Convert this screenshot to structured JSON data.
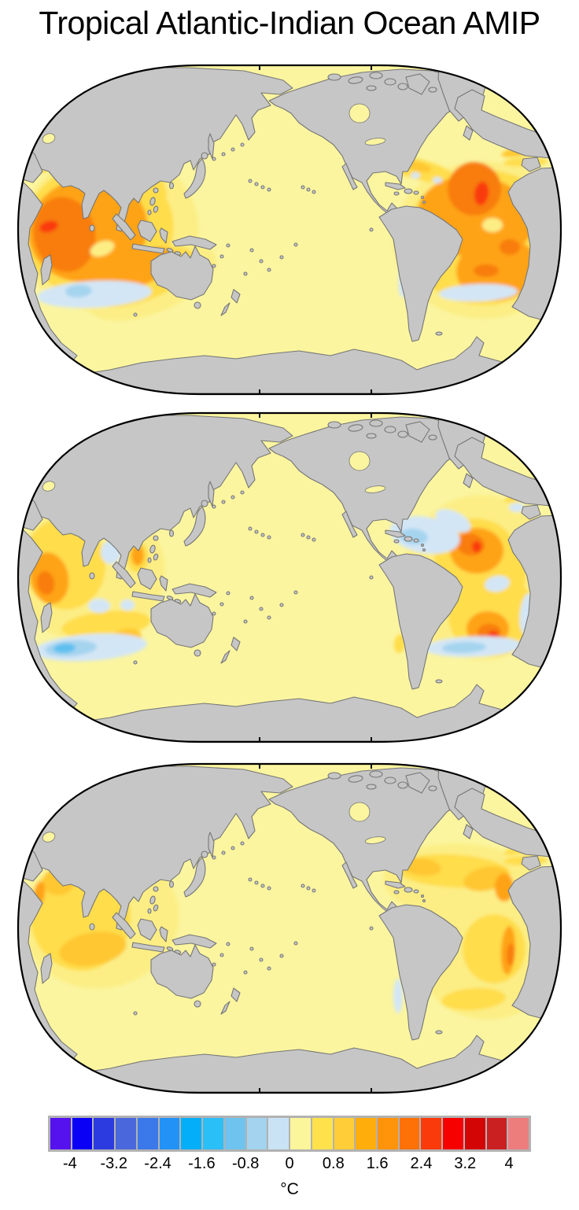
{
  "title": "Tropical Atlantic-Indian Ocean AMIP",
  "map_style": {
    "land_color": "#c6c6c6",
    "coast_color": "#767676",
    "ocean_base_color": "#FBF5A0",
    "frame_color": "#000000",
    "background": "#ffffff"
  },
  "palette": {
    "w1": "#FCEE85",
    "w2": "#FFDD4C",
    "w3": "#FFC731",
    "w4": "#FFA314",
    "w5": "#F87D0A",
    "w6": "#FA3A0A",
    "w7": "#F20500",
    "c1": "#D3E6F6",
    "c2": "#A5D4EF",
    "c3": "#5FC0F0"
  },
  "colorbar": {
    "unit": "°C",
    "tick_labels": [
      "-4",
      "-3.2",
      "-2.4",
      "-1.6",
      "-0.8",
      "0",
      "0.8",
      "1.6",
      "2.4",
      "3.2",
      "4"
    ],
    "segment_colors": [
      "#5512EE",
      "#0A00F5",
      "#2B3BE0",
      "#4A68DC",
      "#3B78EA",
      "#2292F6",
      "#05AEF8",
      "#2BBFF7",
      "#6EC4EE",
      "#A3D3EE",
      "#C9E3F5",
      "#FBF59B",
      "#FFE24B",
      "#FFCD37",
      "#FFAD0B",
      "#FF9309",
      "#FE7107",
      "#FA3A0A",
      "#F60100",
      "#D40505",
      "#CB2022",
      "#ED7D7D"
    ],
    "border_color": "#b2b2b2"
  },
  "chart_data": {
    "type": "heatmap",
    "title": "Tropical Atlantic-Indian Ocean AMIP",
    "subtitle": "",
    "description": "Three Pacific-centered global maps of sea-surface temperature anomaly (°C) for a Tropical Atlantic-Indian Ocean AMIP experiment; land gray, ocean shaded by anomaly.",
    "legend_position": "bottom",
    "units": "°C",
    "colorbar_range": [
      -4.4,
      4.4
    ],
    "colorbar_step": 0.4,
    "segment_edges": [
      -4.4,
      -4.0,
      -3.6,
      -3.2,
      -2.8,
      -2.4,
      -2.0,
      -1.6,
      -1.2,
      -0.8,
      -0.4,
      0,
      0.4,
      0.8,
      1.2,
      1.6,
      2.0,
      2.4,
      2.8,
      3.2,
      3.6,
      4.0,
      4.4
    ],
    "tick_values": [
      -4,
      -3.2,
      -2.4,
      -1.6,
      -0.8,
      0,
      0.8,
      1.6,
      2.4,
      3.2,
      4
    ],
    "background_ocean_value_c": 0.2,
    "panels": [
      {
        "name": "panel-1-top",
        "anomalies": [
          {
            "region": "western tropical Indian Ocean",
            "sign": "warm",
            "peak_c": 2.4
          },
          {
            "region": "tropical Atlantic (both hemispheres, strongest off NW Africa)",
            "sign": "warm",
            "peak_c": 3.0
          },
          {
            "region": "southern Indian Ocean ~40S",
            "sign": "cool",
            "peak_c": -1.0
          },
          {
            "region": "southwestern Atlantic ~40S and SE Brazil coast",
            "sign": "cool",
            "peak_c": -0.8
          },
          {
            "region": "Gulf of Guinea equatorial spot",
            "sign": "cool",
            "peak_c": -0.6
          }
        ],
        "blobs": [
          [
            "w1",
            118,
            215,
            115,
            102,
            -10
          ],
          [
            "w1",
            172,
            278,
            88,
            40,
            -22
          ],
          [
            "w2",
            105,
            212,
            96,
            86,
            -12
          ],
          [
            "w2",
            162,
            272,
            72,
            30,
            -22
          ],
          [
            "w2",
            150,
            168,
            42,
            36,
            0
          ],
          [
            "w4",
            92,
            212,
            76,
            66,
            -12
          ],
          [
            "w4",
            150,
            264,
            56,
            22,
            -22
          ],
          [
            "w5",
            62,
            218,
            39,
            48,
            -12
          ],
          [
            "w6",
            42,
            208,
            12,
            7,
            -15
          ],
          [
            "w4",
            150,
            182,
            9,
            14,
            0
          ],
          [
            "w1",
            110,
            236,
            16,
            9,
            -20
          ],
          [
            "c1",
            100,
            294,
            73,
            17,
            -3
          ],
          [
            "c2",
            80,
            290,
            17,
            8,
            -3
          ],
          [
            "w1",
            595,
            225,
            115,
            100,
            0
          ],
          [
            "w2",
            595,
            222,
            99,
            86,
            0
          ],
          [
            "w2",
            514,
            136,
            45,
            13,
            14
          ],
          [
            "w3",
            512,
            132,
            17,
            6,
            14
          ],
          [
            "w4",
            585,
            196,
            74,
            52,
            8
          ],
          [
            "w4",
            612,
            262,
            52,
            40,
            -8
          ],
          [
            "w5",
            583,
            160,
            34,
            34,
            10
          ],
          [
            "w5",
            628,
            234,
            13,
            10,
            0
          ],
          [
            "w5",
            598,
            264,
            16,
            8,
            0
          ],
          [
            "w6",
            592,
            166,
            9,
            15,
            8
          ],
          [
            "w1",
            606,
            206,
            13,
            9,
            0
          ],
          [
            "c1",
            588,
            292,
            50,
            11,
            -2
          ],
          [
            "c1",
            494,
            272,
            7,
            26,
            6
          ],
          [
            "c1",
            688,
            222,
            10,
            8,
            0
          ],
          [
            "c1",
            508,
            143,
            6,
            4,
            0
          ],
          [
            "c1",
            536,
            149,
            6,
            4,
            0
          ],
          [
            "w2",
            648,
            126,
            28,
            6,
            -2
          ],
          [
            "w3",
            641,
            112,
            24,
            6,
            -12
          ],
          [
            "w2",
            16,
            138,
            13,
            4,
            -50
          ],
          [
            "w2",
            38,
            136,
            7,
            3,
            -25
          ]
        ]
      },
      {
        "name": "panel-2-middle",
        "anomalies": [
          {
            "region": "Arabian Sea / western Indian Ocean",
            "sign": "warm",
            "peak_c": 2.2
          },
          {
            "region": "eastern tropical North Atlantic off West Africa",
            "sign": "warm",
            "peak_c": 2.8
          },
          {
            "region": "central South Atlantic",
            "sign": "warm",
            "peak_c": 2.8
          },
          {
            "region": "subtropical North Atlantic (west of 30N)",
            "sign": "cool",
            "peak_c": -1.2
          },
          {
            "region": "southern Indian Ocean ~40S",
            "sign": "cool",
            "peak_c": -1.4
          },
          {
            "region": "South Atlantic ~40S band and Benguela coast",
            "sign": "cool",
            "peak_c": -1.0
          },
          {
            "region": "Bay of Bengal",
            "sign": "cool",
            "peak_c": -0.6
          }
        ],
        "blobs": [
          [
            "w1",
            95,
            205,
            95,
            90,
            -10
          ],
          [
            "w2",
            62,
            195,
            52,
            58,
            -8
          ],
          [
            "w2",
            115,
            272,
            57,
            17,
            -6
          ],
          [
            "w3",
            142,
            288,
            18,
            11,
            -8
          ],
          [
            "w4",
            43,
            213,
            24,
            33,
            -10
          ],
          [
            "w5",
            38,
            219,
            11,
            15,
            -10
          ],
          [
            "w2",
            155,
            186,
            14,
            20,
            0
          ],
          [
            "w4",
            155,
            184,
            8,
            13,
            0
          ],
          [
            "c1",
            121,
            180,
            13,
            15,
            0
          ],
          [
            "c1",
            106,
            248,
            14,
            9,
            0
          ],
          [
            "c1",
            142,
            247,
            9,
            7,
            0
          ],
          [
            "c1",
            95,
            301,
            72,
            17,
            -4
          ],
          [
            "c2",
            70,
            302,
            33,
            10,
            -4
          ],
          [
            "c3",
            62,
            302,
            14,
            6,
            -4
          ],
          [
            "w1",
            592,
            212,
            100,
            105,
            0
          ],
          [
            "w2",
            584,
            182,
            52,
            45,
            0
          ],
          [
            "w2",
            622,
            212,
            26,
            50,
            4
          ],
          [
            "w2",
            608,
            262,
            58,
            50,
            0
          ],
          [
            "w4",
            586,
            178,
            34,
            29,
            0
          ],
          [
            "w5",
            578,
            170,
            18,
            14,
            10
          ],
          [
            "w6",
            586,
            173,
            6,
            7,
            0
          ],
          [
            "w4",
            600,
            277,
            27,
            22,
            0
          ],
          [
            "w5",
            602,
            282,
            15,
            11,
            0
          ],
          [
            "w6",
            607,
            284,
            6,
            4,
            0
          ],
          [
            "c1",
            520,
            158,
            45,
            23,
            10
          ],
          [
            "c1",
            556,
            140,
            24,
            12,
            25
          ],
          [
            "c2",
            506,
            160,
            18,
            10,
            5
          ],
          [
            "c1",
            612,
            220,
            16,
            10,
            -10
          ],
          [
            "c1",
            650,
            258,
            9,
            26,
            6
          ],
          [
            "c1",
            582,
            300,
            62,
            13,
            -2
          ],
          [
            "c2",
            570,
            301,
            28,
            7,
            -2
          ],
          [
            "w2",
            488,
            296,
            7,
            12,
            8
          ],
          [
            "c1",
            637,
            123,
            10,
            6,
            0
          ],
          [
            "w2",
            642,
            110,
            22,
            5,
            -12
          ],
          [
            "w2",
            16,
            138,
            13,
            4,
            -50
          ]
        ]
      },
      {
        "name": "panel-3-bottom",
        "anomalies": [
          {
            "region": "western Indian Ocean (Arabian Sea to ~30S)",
            "sign": "warm",
            "peak_c": 1.6
          },
          {
            "region": "tropical North Atlantic band (Caribbean to West Africa)",
            "sign": "warm",
            "peak_c": 1.6
          },
          {
            "region": "Brazil east coast",
            "sign": "warm",
            "peak_c": 2.2
          },
          {
            "region": "south-central Atlantic",
            "sign": "warm",
            "peak_c": 0.9
          },
          {
            "region": "Chile coast sliver",
            "sign": "cool",
            "peak_c": -0.6
          }
        ],
        "blobs": [
          [
            "w1",
            108,
            200,
            100,
            88,
            -10
          ],
          [
            "w2",
            82,
            196,
            64,
            70,
            -8
          ],
          [
            "w3",
            98,
            238,
            43,
            21,
            -10
          ],
          [
            "w3",
            54,
            153,
            20,
            17,
            0
          ],
          [
            "w4",
            30,
            168,
            7,
            16,
            8
          ],
          [
            "w1",
            565,
            152,
            98,
            48,
            2
          ],
          [
            "w1",
            600,
            250,
            88,
            78,
            0
          ],
          [
            "w2",
            556,
            139,
            73,
            21,
            3
          ],
          [
            "w3",
            516,
            134,
            25,
            11,
            6
          ],
          [
            "w3",
            598,
            149,
            29,
            15,
            -12
          ],
          [
            "w4",
            621,
            160,
            12,
            18,
            0
          ],
          [
            "w2",
            608,
            238,
            40,
            44,
            0
          ],
          [
            "w4",
            626,
            240,
            9,
            31,
            3
          ],
          [
            "w5",
            629,
            245,
            5,
            14,
            3
          ],
          [
            "w2",
            582,
            302,
            41,
            14,
            -4
          ],
          [
            "c1",
            486,
            298,
            6,
            22,
            0
          ],
          [
            "w2",
            648,
            126,
            28,
            6,
            -2
          ],
          [
            "w2",
            642,
            112,
            22,
            5,
            -12
          ],
          [
            "w2",
            16,
            138,
            13,
            4,
            -50
          ]
        ]
      }
    ]
  }
}
